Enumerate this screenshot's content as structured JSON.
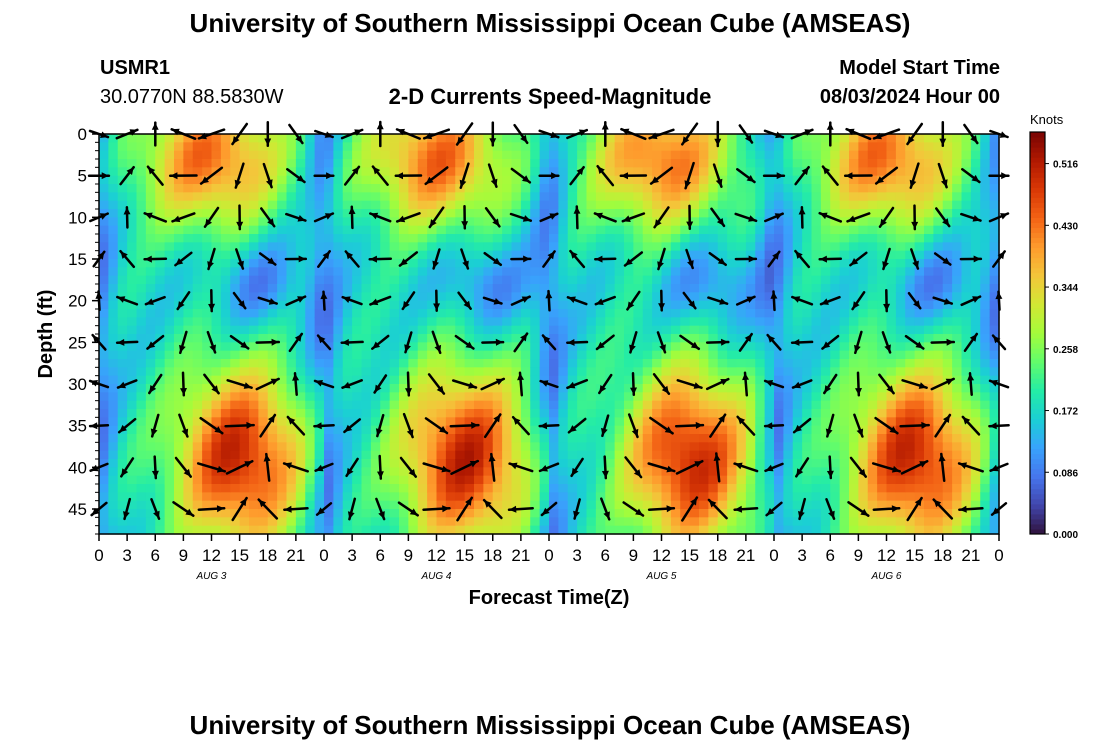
{
  "page": {
    "title_top": "University of Southern Mississippi Ocean Cube (AMSEAS)",
    "title_bottom": "University of Southern Mississippi Ocean Cube (AMSEAS)",
    "station_id": "USMR1",
    "station_coords": "30.0770N  88.5830W",
    "plot_title": "2-D Currents Speed-Magnitude",
    "model_start_label": "Model Start Time",
    "model_start_value": "08/03/2024 Hour 00"
  },
  "colors": {
    "colormap": [
      "#30123b",
      "#4145ab",
      "#4675ed",
      "#39a2fc",
      "#1bcfd4",
      "#24eca6",
      "#61fc6c",
      "#a4fc3b",
      "#d1e834",
      "#f3c63a",
      "#fe9b2d",
      "#f36315",
      "#d93806",
      "#b11901",
      "#7a0403"
    ],
    "arrow": "#000000"
  },
  "chart_data": {
    "type": "heatmap",
    "title": "2-D Currents Speed-Magnitude",
    "xlabel": "Forecast Time(Z)",
    "ylabel": "Depth (ft)",
    "x_range": [
      0,
      96
    ],
    "y_range": [
      0,
      48
    ],
    "x_tick_values": [
      0,
      3,
      6,
      9,
      12,
      15,
      18,
      21,
      24,
      27,
      30,
      33,
      36,
      39,
      42,
      45,
      48,
      51,
      54,
      57,
      60,
      63,
      66,
      69,
      72,
      75,
      78,
      81,
      84,
      87,
      90,
      93,
      96
    ],
    "x_tick_labels": [
      "0",
      "3",
      "6",
      "9",
      "12",
      "15",
      "18",
      "21",
      "0",
      "3",
      "6",
      "9",
      "12",
      "15",
      "18",
      "21",
      "0",
      "3",
      "6",
      "9",
      "12",
      "15",
      "18",
      "21",
      "0",
      "3",
      "6",
      "9",
      "12",
      "15",
      "18",
      "21",
      "0"
    ],
    "y_ticks": [
      0,
      5,
      10,
      15,
      20,
      25,
      30,
      35,
      40,
      45
    ],
    "y_tick_labels": [
      "0",
      "5",
      "10",
      "15",
      "20",
      "25",
      "30",
      "35",
      "40",
      "45"
    ],
    "day_labels": [
      {
        "x": 12,
        "label": "AUG 3"
      },
      {
        "x": 36,
        "label": "AUG 4"
      },
      {
        "x": 60,
        "label": "AUG 5"
      },
      {
        "x": 84,
        "label": "AUG 6"
      }
    ],
    "colorbar": {
      "units": "Knots",
      "range": [
        0.0,
        0.56
      ],
      "ticks": [
        0.0,
        0.086,
        0.172,
        0.258,
        0.344,
        0.43,
        0.516
      ],
      "tick_labels": [
        "0.000",
        "0.086",
        "0.172",
        "0.258",
        "0.344",
        "0.430",
        "0.516"
      ]
    },
    "speed_field": {
      "description": "Current speed (knots) vs forecast hour and depth; high speeds near surface hours ~3-21 each day and at depth 30-48 ft hours ~8-22 each day; low speeds mid-depth 12-22 ft around hours ~14-20 and near midnight columns.",
      "sample_speeds_knots": {
        "surface_hours_3_21": 0.43,
        "deep_hours_9_21": 0.5,
        "mid_depth_hours_14_20": 0.09,
        "midnight_columns": 0.15
      }
    },
    "vectors": "Direction of current shown by arrows on a 3-hour by 5-ft grid"
  }
}
